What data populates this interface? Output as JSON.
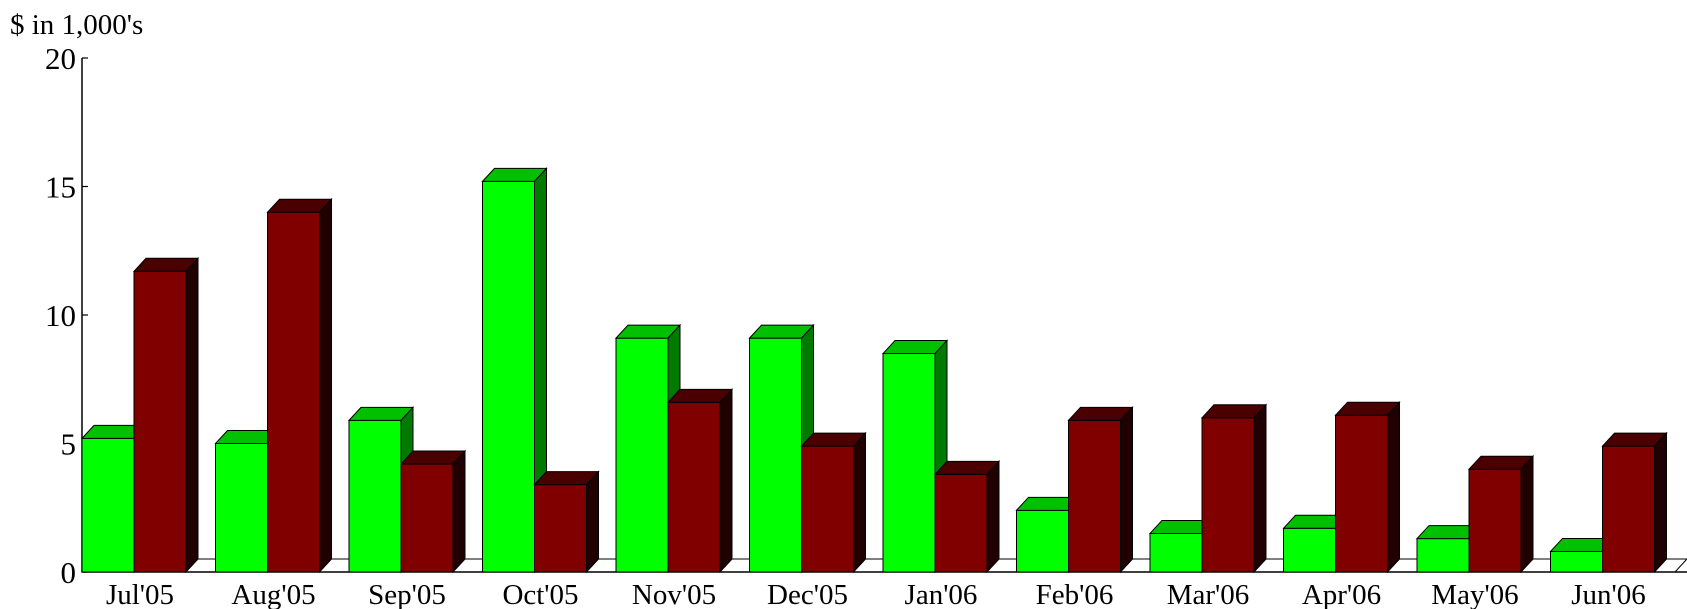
{
  "chart_data": {
    "type": "bar",
    "title": "",
    "xlabel": "",
    "ylabel": "$ in 1,000's",
    "ylim": [
      0,
      20
    ],
    "yticks": [
      "0",
      "5",
      "10",
      "15",
      "20"
    ],
    "categories": [
      "Jul'05",
      "Aug'05",
      "Sep'05",
      "Oct'05",
      "Nov'05",
      "Dec'05",
      "Jan'06",
      "Feb'06",
      "Mar'06",
      "Apr'06",
      "May'06",
      "Jun'06"
    ],
    "series": [
      {
        "color": "#00ff00",
        "values": [
          5.2,
          5.0,
          5.9,
          15.2,
          9.1,
          9.1,
          8.5,
          2.4,
          1.5,
          1.7,
          1.3,
          0.8
        ]
      },
      {
        "color": "#800000",
        "values": [
          11.7,
          14.0,
          4.2,
          3.4,
          6.6,
          4.9,
          3.8,
          5.9,
          6.0,
          6.1,
          4.0,
          4.9
        ]
      }
    ],
    "legend": "none",
    "grid": false,
    "style": "3d"
  }
}
